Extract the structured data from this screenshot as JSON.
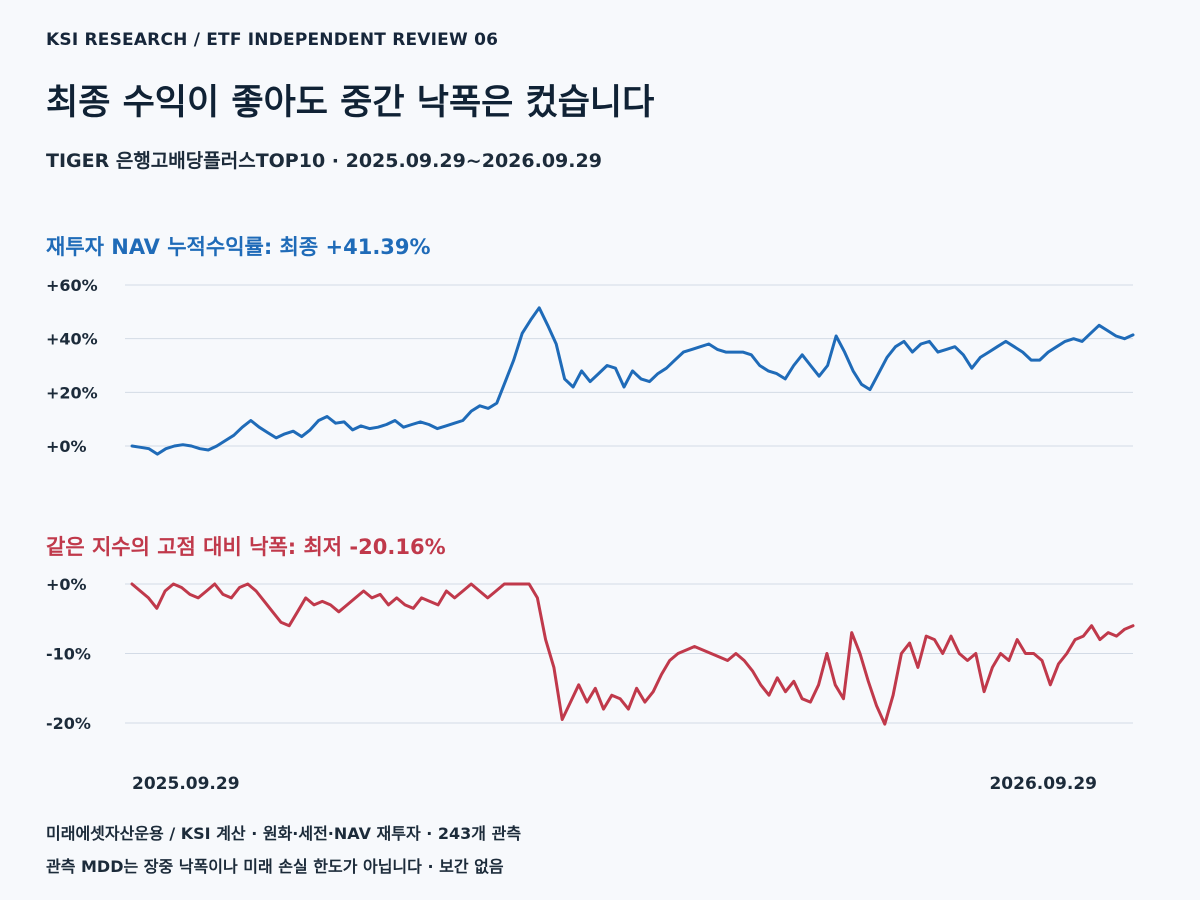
{
  "header": {
    "eyebrow": "KSI RESEARCH / ETF INDEPENDENT REVIEW 06",
    "title": "최종 수익이 좋아도 중간 낙폭은 컸습니다",
    "subtitle": "TIGER 은행고배당플러스TOP10 · 2025.09.29~2026.09.29"
  },
  "colors": {
    "nav_line": "#1f6bb8",
    "drawdown_line": "#c0394b",
    "grid": "#d3dbe6",
    "background": "#f7f9fc"
  },
  "chart_data": [
    {
      "type": "line",
      "title": "재투자 NAV 누적수익률: 최종 +41.39%",
      "xlabel": "",
      "ylabel": "",
      "ylim": [
        0,
        60
      ],
      "yticks": [
        0,
        20,
        40,
        60
      ],
      "ytick_labels": [
        "+0%",
        "+20%",
        "+40%",
        "+60%"
      ],
      "xlim": [
        "2025-09-29",
        "2026-09-29"
      ],
      "grid": true,
      "series": [
        {
          "values": [
            0,
            -0.5,
            -1,
            -3,
            -1,
            0,
            0.5,
            0,
            -1,
            -1.5,
            0,
            2,
            4,
            7,
            9.5,
            7,
            5,
            3,
            4.5,
            5.5,
            3.5,
            6,
            9.5,
            11,
            8.5,
            9,
            6,
            7.5,
            6.5,
            7,
            8,
            9.5,
            7,
            8,
            9,
            8,
            6.5,
            7.5,
            8.5,
            9.5,
            13,
            15,
            14,
            16,
            24,
            32,
            42,
            47,
            51.5,
            45,
            38,
            25,
            22,
            28,
            24,
            27,
            30,
            29,
            22,
            28,
            25,
            24,
            27,
            29,
            32,
            35,
            36,
            37,
            38,
            36,
            35,
            35,
            35,
            34,
            30,
            28,
            27,
            25,
            30,
            34,
            30,
            26,
            30,
            41,
            35,
            28,
            23,
            21,
            27,
            33,
            37,
            39,
            35,
            38,
            39,
            35,
            36,
            37,
            34,
            29,
            33,
            35,
            37,
            39,
            37,
            35,
            32,
            32,
            35,
            37,
            39,
            40,
            39,
            42,
            45,
            43,
            41,
            40,
            41.39
          ]
        }
      ]
    },
    {
      "type": "line",
      "title": "같은 지수의 고점 대비 낙폭: 최저 -20.16%",
      "xlabel": "",
      "ylabel": "",
      "ylim": [
        -20,
        0
      ],
      "yticks": [
        0,
        -10,
        -20
      ],
      "ytick_labels": [
        "+0%",
        "-10%",
        "-20%"
      ],
      "xlim": [
        "2025-09-29",
        "2026-09-29"
      ],
      "xtick_labels": [
        "2025.09.29",
        "2026.09.29"
      ],
      "grid": true,
      "series": [
        {
          "values": [
            0,
            -1,
            -2,
            -3.5,
            -1,
            0,
            -0.5,
            -1.5,
            -2,
            -1,
            0,
            -1.5,
            -2,
            -0.5,
            0,
            -1,
            -2.5,
            -4,
            -5.5,
            -6,
            -4,
            -2,
            -3,
            -2.5,
            -3,
            -4,
            -3,
            -2,
            -1,
            -2,
            -1.5,
            -3,
            -2,
            -3,
            -3.5,
            -2,
            -2.5,
            -3,
            -1,
            -2,
            -1,
            0,
            -1,
            -2,
            -1,
            0,
            0,
            0,
            0,
            -2,
            -8,
            -12,
            -19.5,
            -17,
            -14.5,
            -17,
            -15,
            -18,
            -16,
            -16.5,
            -18,
            -15,
            -17,
            -15.5,
            -13,
            -11,
            -10,
            -9.5,
            -9,
            -9.5,
            -10,
            -10.5,
            -11,
            -10,
            -11,
            -12.5,
            -14.5,
            -16,
            -13.5,
            -15.5,
            -14,
            -16.5,
            -17,
            -14.5,
            -10,
            -14.5,
            -16.5,
            -7,
            -10,
            -14,
            -17.5,
            -20.16,
            -16,
            -10,
            -8.5,
            -12,
            -7.5,
            -8,
            -10,
            -7.5,
            -10,
            -11,
            -10,
            -15.5,
            -12,
            -10,
            -11,
            -8,
            -10,
            -10,
            -11,
            -14.5,
            -11.5,
            -10,
            -8,
            -7.5,
            -6,
            -8,
            -7,
            -7.5,
            -6.5,
            -6
          ]
        }
      ]
    }
  ],
  "footer": {
    "line1": "미래에셋자산운용 / KSI 계산 · 원화·세전·NAV 재투자 · 243개 관측",
    "line2": "관측 MDD는 장중 낙폭이나 미래 손실 한도가 아닙니다 · 보간 없음"
  }
}
